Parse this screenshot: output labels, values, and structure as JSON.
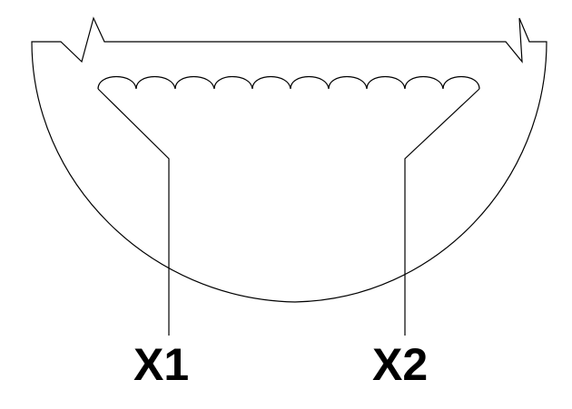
{
  "terminals": {
    "left": "X1",
    "right": "X2"
  },
  "colors": {
    "stroke": "#000000",
    "background": "#ffffff"
  }
}
